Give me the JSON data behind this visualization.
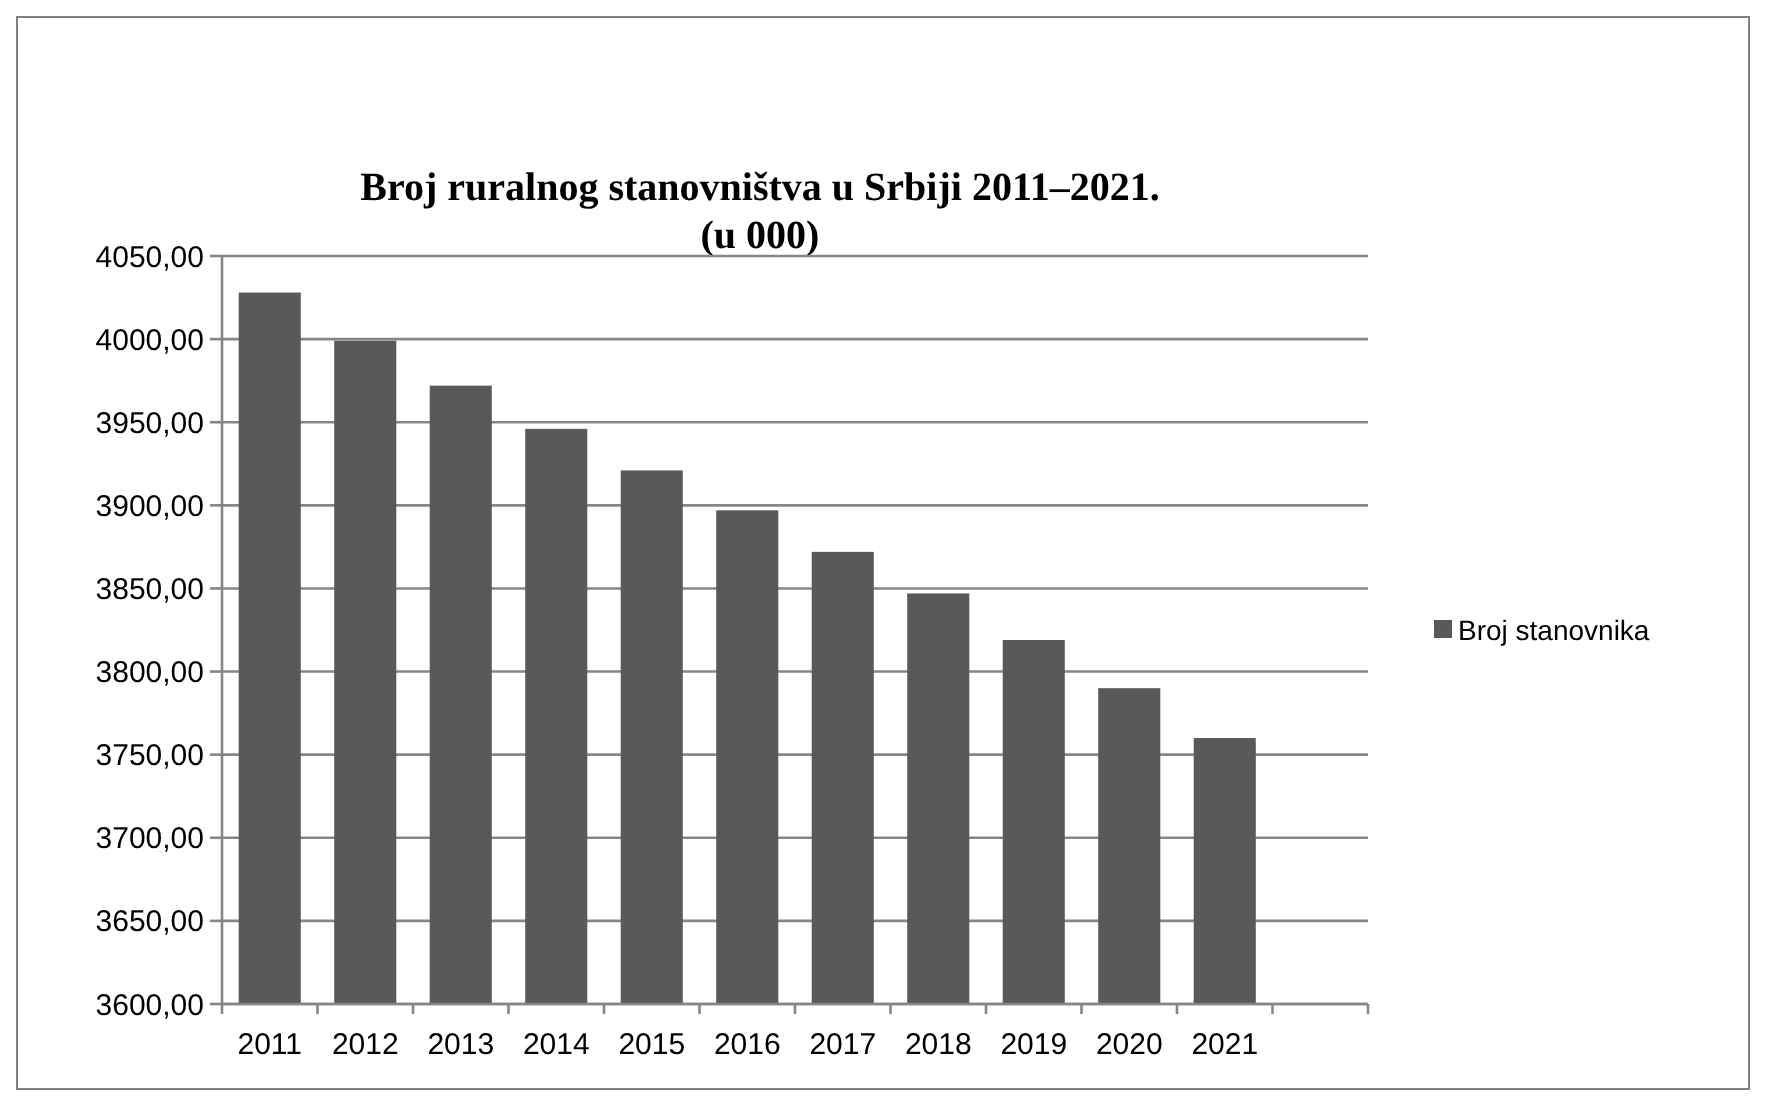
{
  "chart_data": {
    "type": "bar",
    "title": "Broj ruralnog stanovništva u Srbiji 2011–2021.\n(u 000)",
    "categories": [
      "2011",
      "2012",
      "2013",
      "2014",
      "2015",
      "2016",
      "2017",
      "2018",
      "2019",
      "2020",
      "2021",
      null
    ],
    "series": [
      {
        "name": "Broj stanovnika",
        "color": "#595959",
        "values": [
          4028,
          3999,
          3972,
          3946,
          3921,
          3897,
          3872,
          3847,
          3819,
          3790,
          3760,
          null
        ]
      }
    ],
    "ylim": [
      3600,
      4050
    ],
    "yticks": [
      {
        "value": 3600,
        "label": "3600,00"
      },
      {
        "value": 3650,
        "label": "3650,00"
      },
      {
        "value": 3700,
        "label": "3700,00"
      },
      {
        "value": 3750,
        "label": "3750,00"
      },
      {
        "value": 3800,
        "label": "3800,00"
      },
      {
        "value": 3850,
        "label": "3850,00"
      },
      {
        "value": 3900,
        "label": "3900,00"
      },
      {
        "value": 3950,
        "label": "3950,00"
      },
      {
        "value": 4000,
        "label": "4000,00"
      },
      {
        "value": 4050,
        "label": "4050,00"
      }
    ],
    "grid": "y",
    "legend": "right"
  }
}
